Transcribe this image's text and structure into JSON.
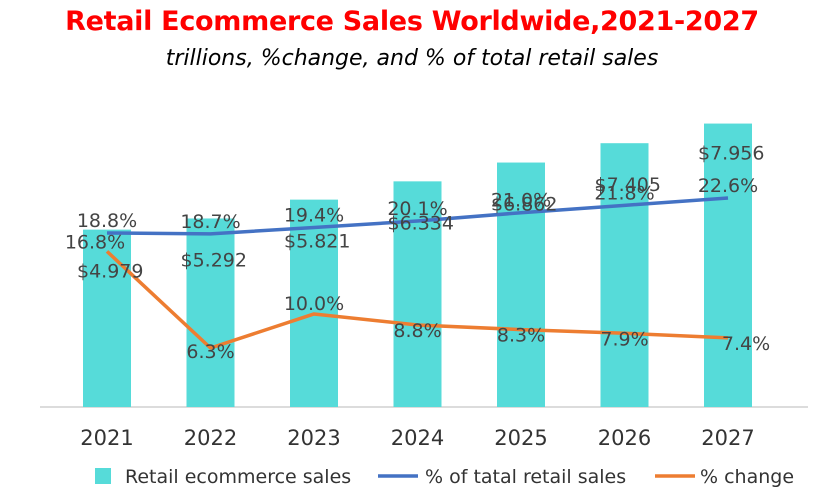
{
  "chart_data": {
    "type": "bar",
    "title": "Retail Ecommerce Sales Worldwide,2021-2027",
    "subtitle": "trillions, %change, and % of total retail sales",
    "categories": [
      "2021",
      "2022",
      "2023",
      "2024",
      "2025",
      "2026",
      "2027"
    ],
    "series": [
      {
        "name": "Retail ecommerce sales",
        "kind": "bar",
        "color": "#56dbd9",
        "values": [
          4.979,
          5.292,
          5.821,
          6.334,
          6.862,
          7.405,
          7.956
        ],
        "labels": [
          "$4.979",
          "$5.292",
          "$5.821",
          "$6.334",
          "$6.862",
          "$7.405",
          "$7.956"
        ]
      },
      {
        "name": "% of tatal retail sales",
        "kind": "line",
        "color": "#4472c4",
        "values": [
          18.8,
          18.7,
          19.4,
          20.1,
          21.0,
          21.8,
          22.6
        ],
        "labels": [
          "18.8%",
          "18.7%",
          "19.4%",
          "20.1%",
          "21.0%",
          "21.8%",
          "22.6%"
        ]
      },
      {
        "name": "% change",
        "kind": "line",
        "color": "#ed7d31",
        "values": [
          16.8,
          6.3,
          10.0,
          8.8,
          8.3,
          7.9,
          7.4
        ],
        "labels": [
          "16.8%",
          "6.3%",
          "10.0%",
          "8.8%",
          "8.3%",
          "7.9%",
          "7.4%"
        ]
      }
    ],
    "grid": false,
    "legend": "bottom"
  }
}
